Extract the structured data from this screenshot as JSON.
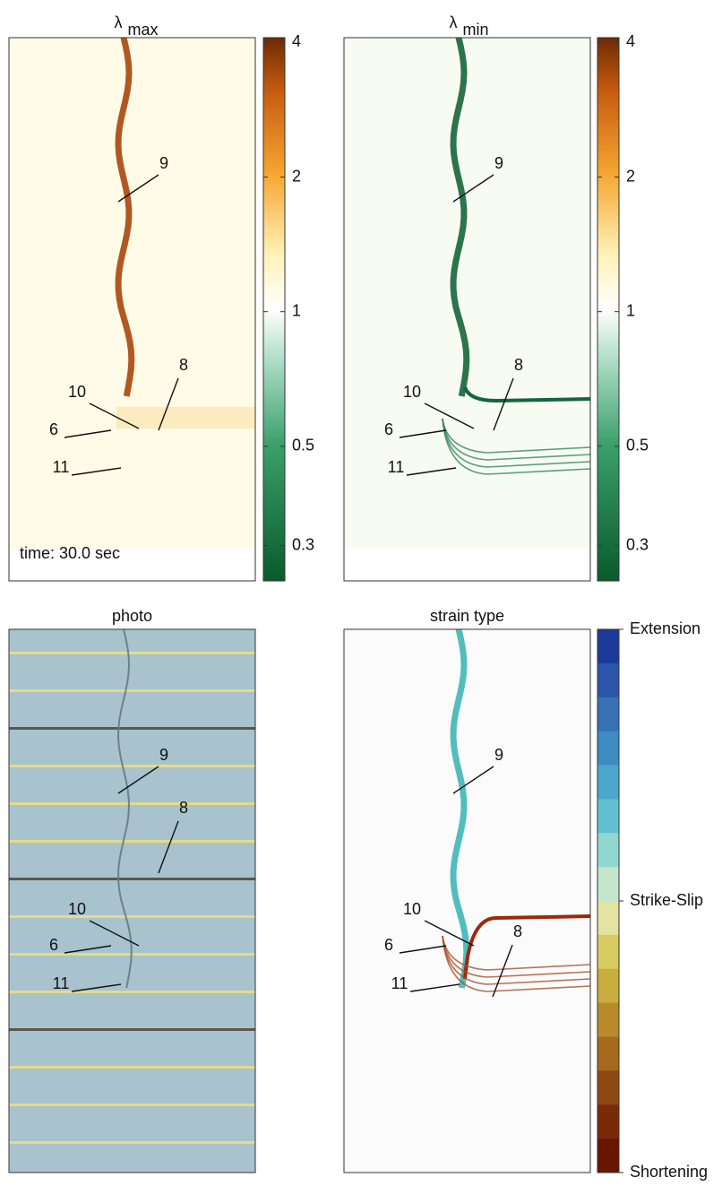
{
  "panels": [
    {
      "title": {
        "symbol": "λ",
        "subscript": "max"
      },
      "annotations": [
        "9",
        "8",
        "10",
        "6",
        "11"
      ],
      "time_label": "time: 30.0 sec"
    },
    {
      "title": {
        "symbol": "λ",
        "subscript": "min"
      },
      "annotations": [
        "9",
        "8",
        "10",
        "6",
        "11"
      ]
    },
    {
      "title": "photo",
      "annotations": [
        "9",
        "8",
        "10",
        "6",
        "11"
      ]
    },
    {
      "title": "strain type",
      "annotations": [
        "9",
        "8",
        "10",
        "6",
        "11"
      ]
    }
  ],
  "colorbars": [
    {
      "scale": "log",
      "lim": [
        0.25,
        4.1
      ],
      "ticks": [
        0.3,
        0.5,
        1,
        2,
        4
      ]
    },
    {
      "scale": "log",
      "lim": [
        0.25,
        4.1
      ],
      "ticks": [
        0.3,
        0.5,
        1,
        2,
        4
      ]
    },
    {
      "labels": [
        "Extension",
        "Strike-Slip",
        "Shortening"
      ]
    }
  ]
}
